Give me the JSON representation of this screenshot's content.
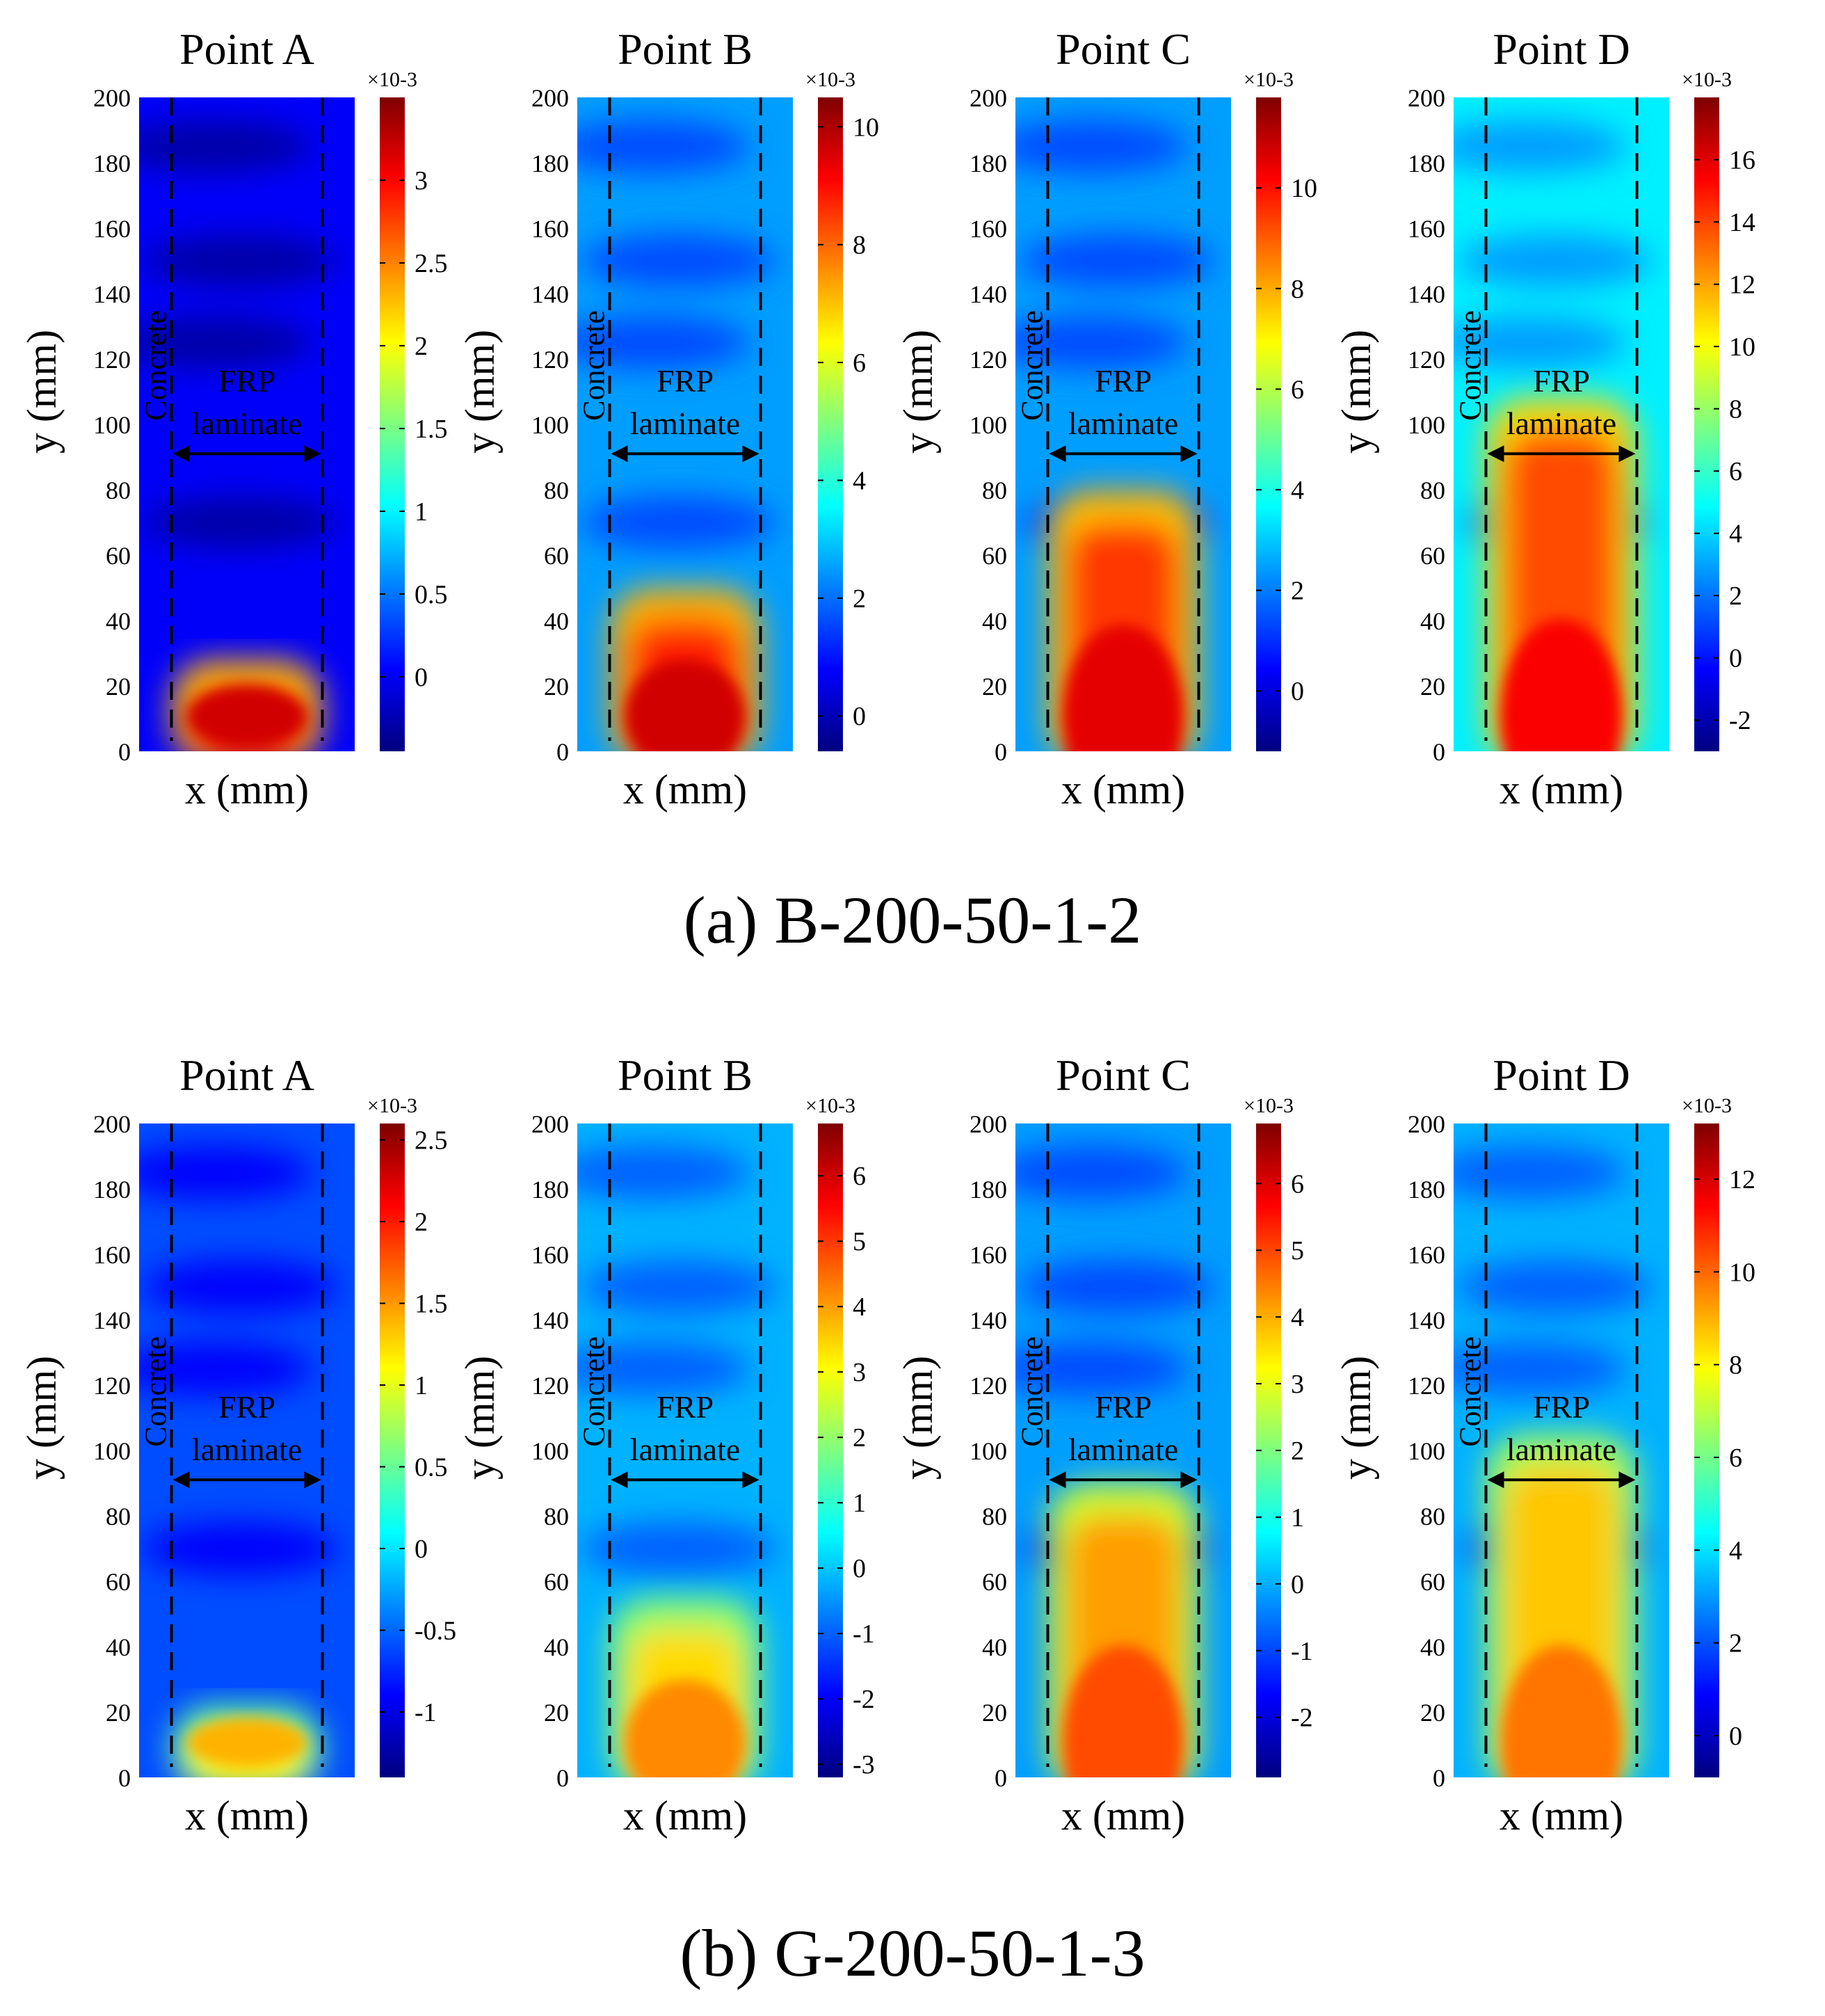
{
  "colors": {
    "jet_stops": [
      "#00007f",
      "#0000ff",
      "#007fff",
      "#00ffff",
      "#7fff7f",
      "#ffff00",
      "#ff7f00",
      "#ff0000",
      "#7f0000"
    ],
    "dashed_line": "#000000",
    "text": "#000000"
  },
  "labels": {
    "concrete": "Concrete",
    "frp_line1": "FRP",
    "frp_line2": "laminate",
    "x_axis": "x (mm)",
    "y_axis": "y (mm)",
    "exponent": "×10-3"
  },
  "chart_data": [
    {
      "group": "(a) B-200-50-1-2",
      "type": "heatmap",
      "ylim": [
        0,
        200
      ],
      "yticks": [
        0,
        20,
        40,
        60,
        80,
        100,
        120,
        140,
        160,
        180,
        200
      ],
      "panels": [
        {
          "title": "Point A",
          "xlabel": "x (mm)",
          "ylabel": "y (mm)",
          "show_ylabel": true,
          "colorbar": {
            "min": -0.45,
            "max": 3.5,
            "ticks": [
              "0",
              "0.5",
              "1",
              "1.5",
              "2",
              "2.5",
              "3"
            ],
            "tick_values": [
              0,
              0.5,
              1,
              1.5,
              2,
              2.5,
              3
            ],
            "exponent": "×10-3"
          },
          "strain_front_y": 28,
          "frac_tip": 0.92,
          "frac_bg": 0.12
        },
        {
          "title": "Point B",
          "xlabel": "x (mm)",
          "ylabel": "y (mm)",
          "show_ylabel": true,
          "colorbar": {
            "min": -0.6,
            "max": 10.5,
            "ticks": [
              "0",
              "2",
              "4",
              "6",
              "8",
              "10"
            ],
            "tick_values": [
              0,
              2,
              4,
              6,
              8,
              10
            ],
            "exponent": "×10-3"
          },
          "strain_front_y": 50,
          "frac_tip": 0.92,
          "frac_bg": 0.28
        },
        {
          "title": "Point C",
          "xlabel": "x (mm)",
          "ylabel": "y (mm)",
          "show_ylabel": true,
          "colorbar": {
            "min": -1.2,
            "max": 11.8,
            "ticks": [
              "0",
              "2",
              "4",
              "6",
              "8",
              "10"
            ],
            "tick_values": [
              0,
              2,
              4,
              6,
              8,
              10
            ],
            "exponent": "×10-3"
          },
          "strain_front_y": 80,
          "frac_tip": 0.9,
          "frac_bg": 0.28
        },
        {
          "title": "Point D",
          "xlabel": "x (mm)",
          "ylabel": "y (mm)",
          "show_ylabel": true,
          "colorbar": {
            "min": -3.0,
            "max": 18.0,
            "ticks": [
              "-2",
              "0",
              "2",
              "4",
              "6",
              "8",
              "10",
              "12",
              "14",
              "16"
            ],
            "tick_values": [
              -2,
              0,
              2,
              4,
              6,
              8,
              10,
              12,
              14,
              16
            ],
            "exponent": "×10-3"
          },
          "strain_front_y": 108,
          "frac_tip": 0.88,
          "frac_bg": 0.36
        }
      ]
    },
    {
      "group": "(b) G-200-50-1-3",
      "type": "heatmap",
      "ylim": [
        0,
        200
      ],
      "yticks": [
        0,
        20,
        40,
        60,
        80,
        100,
        120,
        140,
        160,
        180,
        200
      ],
      "panels": [
        {
          "title": "Point A",
          "xlabel": "x (mm)",
          "ylabel": "y (mm)",
          "show_ylabel": true,
          "colorbar": {
            "min": -1.4,
            "max": 2.6,
            "ticks": [
              "-1",
              "-0.5",
              "0",
              "0.5",
              "1",
              "1.5",
              "2",
              "2.5"
            ],
            "tick_values": [
              -1,
              -0.5,
              0,
              0.5,
              1,
              1.5,
              2,
              2.5
            ],
            "exponent": "×10-3"
          },
          "strain_front_y": 22,
          "frac_tip": 0.7,
          "frac_bg": 0.2
        },
        {
          "title": "Point B",
          "xlabel": "x (mm)",
          "ylabel": "y (mm)",
          "show_ylabel": true,
          "colorbar": {
            "min": -3.2,
            "max": 6.8,
            "ticks": [
              "-3",
              "-2",
              "-1",
              "0",
              "1",
              "2",
              "3",
              "4",
              "5",
              "6"
            ],
            "tick_values": [
              -3,
              -2,
              -1,
              0,
              1,
              2,
              3,
              4,
              5,
              6
            ],
            "exponent": "×10-3"
          },
          "strain_front_y": 55,
          "frac_tip": 0.74,
          "frac_bg": 0.3
        },
        {
          "title": "Point C",
          "xlabel": "x (mm)",
          "ylabel": "y (mm)",
          "show_ylabel": true,
          "colorbar": {
            "min": -2.9,
            "max": 6.9,
            "ticks": [
              "-2",
              "-1",
              "0",
              "1",
              "2",
              "3",
              "4",
              "5",
              "6"
            ],
            "tick_values": [
              -2,
              -1,
              0,
              1,
              2,
              3,
              4,
              5,
              6
            ],
            "exponent": "×10-3"
          },
          "strain_front_y": 90,
          "frac_tip": 0.8,
          "frac_bg": 0.28
        },
        {
          "title": "Point D",
          "xlabel": "x (mm)",
          "ylabel": "y (mm)",
          "show_ylabel": true,
          "colorbar": {
            "min": -0.9,
            "max": 13.2,
            "ticks": [
              "0",
              "2",
              "4",
              "6",
              "8",
              "10",
              "12"
            ],
            "tick_values": [
              0,
              2,
              4,
              6,
              8,
              10,
              12
            ],
            "exponent": "×10-3"
          },
          "strain_front_y": 105,
          "frac_tip": 0.76,
          "frac_bg": 0.3
        }
      ]
    }
  ]
}
